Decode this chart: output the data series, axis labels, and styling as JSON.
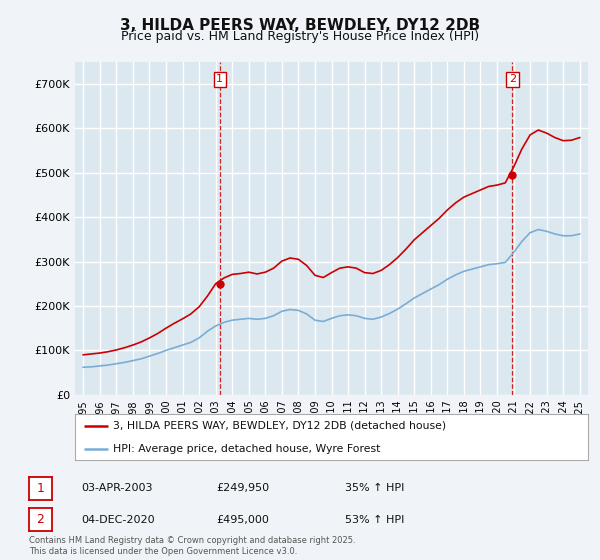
{
  "title": "3, HILDA PEERS WAY, BEWDLEY, DY12 2DB",
  "subtitle": "Price paid vs. HM Land Registry's House Price Index (HPI)",
  "property_label": "3, HILDA PEERS WAY, BEWDLEY, DY12 2DB (detached house)",
  "hpi_label": "HPI: Average price, detached house, Wyre Forest",
  "sale1_date": "03-APR-2003",
  "sale1_price": "£249,950",
  "sale1_hpi": "35% ↑ HPI",
  "sale2_date": "04-DEC-2020",
  "sale2_price": "£495,000",
  "sale2_hpi": "53% ↑ HPI",
  "sale1_x": 2003.25,
  "sale2_x": 2020.92,
  "sale1_y": 249950,
  "sale2_y": 495000,
  "property_color": "#cc0000",
  "hpi_color": "#7aadd6",
  "vline_color": "#cc0000",
  "background_color": "#f0f4f8",
  "plot_bg": "#dce8f0",
  "grid_color": "#ffffff",
  "ylim": [
    0,
    750000
  ],
  "xlim_start": 1994.5,
  "xlim_end": 2025.5,
  "yticks": [
    0,
    100000,
    200000,
    300000,
    400000,
    500000,
    600000,
    700000
  ],
  "copyright": "Contains HM Land Registry data © Crown copyright and database right 2025.\nThis data is licensed under the Open Government Licence v3.0.",
  "hpi_years": [
    1995,
    1995.5,
    1996,
    1996.5,
    1997,
    1997.5,
    1998,
    1998.5,
    1999,
    1999.5,
    2000,
    2000.5,
    2001,
    2001.5,
    2002,
    2002.5,
    2003,
    2003.5,
    2004,
    2004.5,
    2005,
    2005.5,
    2006,
    2006.5,
    2007,
    2007.5,
    2008,
    2008.5,
    2009,
    2009.5,
    2010,
    2010.5,
    2011,
    2011.5,
    2012,
    2012.5,
    2013,
    2013.5,
    2014,
    2014.5,
    2015,
    2015.5,
    2016,
    2016.5,
    2017,
    2017.5,
    2018,
    2018.5,
    2019,
    2019.5,
    2020,
    2020.5,
    2021,
    2021.5,
    2022,
    2022.5,
    2023,
    2023.5,
    2024,
    2024.5,
    2025
  ],
  "hpi_values": [
    62000,
    63000,
    65000,
    67000,
    70000,
    73000,
    77000,
    81000,
    87000,
    93000,
    100000,
    106000,
    112000,
    118000,
    128000,
    143000,
    155000,
    163000,
    168000,
    170000,
    172000,
    170000,
    172000,
    178000,
    188000,
    192000,
    190000,
    182000,
    168000,
    165000,
    172000,
    178000,
    180000,
    178000,
    172000,
    170000,
    175000,
    183000,
    193000,
    205000,
    218000,
    228000,
    238000,
    248000,
    260000,
    270000,
    278000,
    283000,
    288000,
    293000,
    295000,
    298000,
    320000,
    345000,
    365000,
    372000,
    368000,
    362000,
    358000,
    358000,
    362000
  ],
  "prop_years": [
    1995,
    1995.5,
    1996,
    1996.5,
    1997,
    1997.5,
    1998,
    1998.5,
    1999,
    1999.5,
    2000,
    2000.5,
    2001,
    2001.5,
    2002,
    2002.5,
    2003,
    2003.5,
    2004,
    2004.5,
    2005,
    2005.5,
    2006,
    2006.5,
    2007,
    2007.5,
    2008,
    2008.5,
    2009,
    2009.5,
    2010,
    2010.5,
    2011,
    2011.5,
    2012,
    2012.5,
    2013,
    2013.5,
    2014,
    2014.5,
    2015,
    2015.5,
    2016,
    2016.5,
    2017,
    2017.5,
    2018,
    2018.5,
    2019,
    2019.5,
    2020,
    2020.5,
    2021,
    2021.5,
    2022,
    2022.5,
    2023,
    2023.5,
    2024,
    2024.5,
    2025
  ],
  "prop_values": [
    90000,
    92000,
    94000,
    97000,
    101000,
    106000,
    112000,
    119000,
    128000,
    138000,
    150000,
    161000,
    171000,
    182000,
    198000,
    222000,
    249950,
    263000,
    271000,
    273000,
    276000,
    272000,
    276000,
    285000,
    301000,
    308000,
    305000,
    291000,
    269000,
    264000,
    275000,
    285000,
    288000,
    285000,
    275000,
    273000,
    280000,
    293000,
    309000,
    328000,
    349000,
    365000,
    381000,
    397000,
    416000,
    432000,
    445000,
    453000,
    461000,
    469000,
    472000,
    477000,
    512000,
    553000,
    585000,
    596000,
    589000,
    579000,
    572000,
    573000,
    579000
  ]
}
